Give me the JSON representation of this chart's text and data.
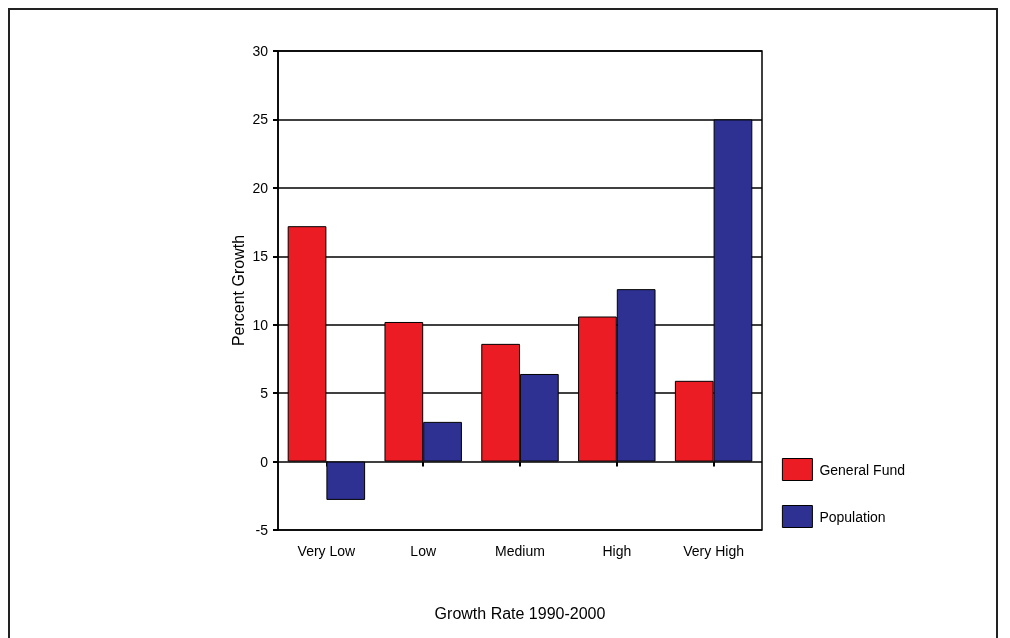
{
  "chart_data": {
    "type": "bar",
    "xlabel": "Growth Rate 1990-2000",
    "ylabel": "Percent Growth",
    "categories": [
      "Very Low",
      "Low",
      "Medium",
      "High",
      "Very High"
    ],
    "series": [
      {
        "name": "General Fund",
        "color": "#ec1c24",
        "values": [
          17.2,
          10.2,
          8.6,
          10.6,
          5.9
        ]
      },
      {
        "name": "Population",
        "color": "#2e3192",
        "values": [
          -2.8,
          2.9,
          6.4,
          12.6,
          25.0
        ]
      }
    ],
    "ylim": [
      -5,
      30
    ],
    "yticks": [
      -5,
      0,
      5,
      10,
      15,
      20,
      25,
      30
    ],
    "grid": "y",
    "legend": "bottom right"
  }
}
